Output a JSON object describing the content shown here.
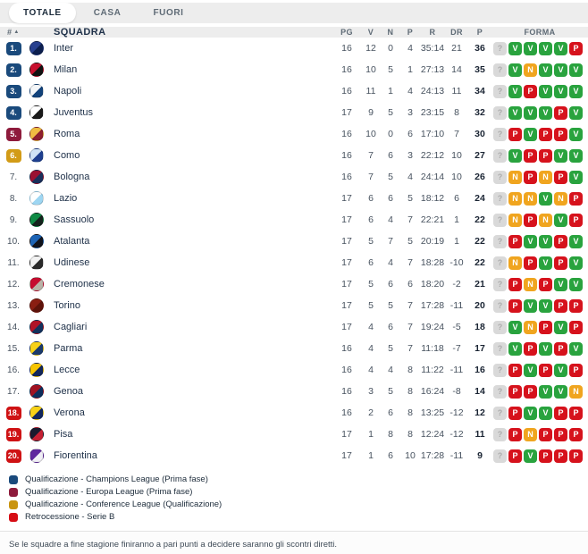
{
  "tabs": [
    {
      "label": "TOTALE",
      "active": true
    },
    {
      "label": "CASA",
      "active": false
    },
    {
      "label": "FUORI",
      "active": false
    }
  ],
  "table": {
    "headers": {
      "rank": "#",
      "sort_indicator": "▲",
      "squad": "SQUADRA",
      "pg": "PG",
      "v": "V",
      "n": "N",
      "p": "P",
      "r": "R",
      "dr": "DR",
      "pts": "P",
      "forma": "FORMA"
    },
    "rows": [
      {
        "rank": "1.",
        "badge": "cl",
        "name": "Inter",
        "logo_colors": [
          "#27408f",
          "#0c1f4e"
        ],
        "pg": 16,
        "v": 12,
        "n": 0,
        "p": 4,
        "r": "35:14",
        "dr": "21",
        "pts": 36,
        "forma": [
          "?",
          "V",
          "V",
          "V",
          "V",
          "P"
        ]
      },
      {
        "rank": "2.",
        "badge": "cl",
        "name": "Milan",
        "logo_colors": [
          "#c8102e",
          "#121212"
        ],
        "pg": 16,
        "v": 10,
        "n": 5,
        "p": 1,
        "r": "27:13",
        "dr": "14",
        "pts": 35,
        "forma": [
          "?",
          "V",
          "N",
          "V",
          "V",
          "V"
        ]
      },
      {
        "rank": "3.",
        "badge": "cl",
        "name": "Napoli",
        "logo_colors": [
          "#f4f6f8",
          "#12427a"
        ],
        "pg": 16,
        "v": 11,
        "n": 1,
        "p": 4,
        "r": "24:13",
        "dr": "11",
        "pts": 34,
        "forma": [
          "?",
          "V",
          "P",
          "V",
          "V",
          "V"
        ]
      },
      {
        "rank": "4.",
        "badge": "cl",
        "name": "Juventus",
        "logo_colors": [
          "#ffffff",
          "#1a1a1a"
        ],
        "pg": 17,
        "v": 9,
        "n": 5,
        "p": 3,
        "r": "23:15",
        "dr": "8",
        "pts": 32,
        "forma": [
          "?",
          "V",
          "V",
          "V",
          "P",
          "V"
        ]
      },
      {
        "rank": "5.",
        "badge": "el",
        "name": "Roma",
        "logo_colors": [
          "#f0bc42",
          "#8e1f2f"
        ],
        "pg": 16,
        "v": 10,
        "n": 0,
        "p": 6,
        "r": "17:10",
        "dr": "7",
        "pts": 30,
        "forma": [
          "?",
          "P",
          "V",
          "P",
          "P",
          "V"
        ]
      },
      {
        "rank": "6.",
        "badge": "conf",
        "name": "Como",
        "logo_colors": [
          "#cfe3f5",
          "#1e3f8f"
        ],
        "pg": 16,
        "v": 7,
        "n": 6,
        "p": 3,
        "r": "22:12",
        "dr": "10",
        "pts": 27,
        "forma": [
          "?",
          "V",
          "P",
          "P",
          "V",
          "V"
        ]
      },
      {
        "rank": "7.",
        "badge": "none",
        "name": "Bologna",
        "logo_colors": [
          "#9a1032",
          "#1a2f5a"
        ],
        "pg": 16,
        "v": 7,
        "n": 5,
        "p": 4,
        "r": "24:14",
        "dr": "10",
        "pts": 26,
        "forma": [
          "?",
          "N",
          "P",
          "N",
          "P",
          "V"
        ]
      },
      {
        "rank": "8.",
        "badge": "none",
        "name": "Lazio",
        "logo_colors": [
          "#ffffff",
          "#9ed6f2"
        ],
        "pg": 17,
        "v": 6,
        "n": 6,
        "p": 5,
        "r": "18:12",
        "dr": "6",
        "pts": 24,
        "forma": [
          "?",
          "N",
          "N",
          "V",
          "N",
          "P"
        ]
      },
      {
        "rank": "9.",
        "badge": "none",
        "name": "Sassuolo",
        "logo_colors": [
          "#0e8a44",
          "#14221c"
        ],
        "pg": 17,
        "v": 6,
        "n": 4,
        "p": 7,
        "r": "22:21",
        "dr": "1",
        "pts": 22,
        "forma": [
          "?",
          "N",
          "P",
          "N",
          "V",
          "P"
        ]
      },
      {
        "rank": "10.",
        "badge": "none",
        "name": "Atalanta",
        "logo_colors": [
          "#1d64b5",
          "#10131c"
        ],
        "pg": 17,
        "v": 5,
        "n": 7,
        "p": 5,
        "r": "20:19",
        "dr": "1",
        "pts": 22,
        "forma": [
          "?",
          "P",
          "V",
          "V",
          "P",
          "V"
        ]
      },
      {
        "rank": "11.",
        "badge": "none",
        "name": "Udinese",
        "logo_colors": [
          "#f2f2f2",
          "#2a2a2a"
        ],
        "pg": 17,
        "v": 6,
        "n": 4,
        "p": 7,
        "r": "18:28",
        "dr": "-10",
        "pts": 22,
        "forma": [
          "?",
          "N",
          "P",
          "V",
          "P",
          "V"
        ]
      },
      {
        "rank": "12.",
        "badge": "none",
        "name": "Cremonese",
        "logo_colors": [
          "#c60c30",
          "#b9b3a8"
        ],
        "pg": 17,
        "v": 5,
        "n": 6,
        "p": 6,
        "r": "18:20",
        "dr": "-2",
        "pts": 21,
        "forma": [
          "?",
          "P",
          "N",
          "P",
          "V",
          "V"
        ]
      },
      {
        "rank": "13.",
        "badge": "none",
        "name": "Torino",
        "logo_colors": [
          "#8a1e12",
          "#5e130a"
        ],
        "pg": 17,
        "v": 5,
        "n": 5,
        "p": 7,
        "r": "17:28",
        "dr": "-11",
        "pts": 20,
        "forma": [
          "?",
          "P",
          "V",
          "V",
          "P",
          "P"
        ]
      },
      {
        "rank": "14.",
        "badge": "none",
        "name": "Cagliari",
        "logo_colors": [
          "#b01227",
          "#13315c"
        ],
        "pg": 17,
        "v": 4,
        "n": 6,
        "p": 7,
        "r": "19:24",
        "dr": "-5",
        "pts": 18,
        "forma": [
          "?",
          "V",
          "N",
          "P",
          "V",
          "P"
        ]
      },
      {
        "rank": "15.",
        "badge": "none",
        "name": "Parma",
        "logo_colors": [
          "#f7d117",
          "#1b3a6b"
        ],
        "pg": 16,
        "v": 4,
        "n": 5,
        "p": 7,
        "r": "11:18",
        "dr": "-7",
        "pts": 17,
        "forma": [
          "?",
          "V",
          "P",
          "V",
          "P",
          "V"
        ]
      },
      {
        "rank": "16.",
        "badge": "none",
        "name": "Lecce",
        "logo_colors": [
          "#f7c500",
          "#13275a"
        ],
        "pg": 16,
        "v": 4,
        "n": 4,
        "p": 8,
        "r": "11:22",
        "dr": "-11",
        "pts": 16,
        "forma": [
          "?",
          "P",
          "V",
          "P",
          "V",
          "P"
        ]
      },
      {
        "rank": "17.",
        "badge": "none",
        "name": "Genoa",
        "logo_colors": [
          "#a11222",
          "#0d2e5c"
        ],
        "pg": 16,
        "v": 3,
        "n": 5,
        "p": 8,
        "r": "16:24",
        "dr": "-8",
        "pts": 14,
        "forma": [
          "?",
          "P",
          "P",
          "V",
          "V",
          "N"
        ]
      },
      {
        "rank": "18.",
        "badge": "rel",
        "name": "Verona",
        "logo_colors": [
          "#f7d117",
          "#12275e"
        ],
        "pg": 16,
        "v": 2,
        "n": 6,
        "p": 8,
        "r": "13:25",
        "dr": "-12",
        "pts": 12,
        "forma": [
          "?",
          "P",
          "V",
          "V",
          "P",
          "P"
        ]
      },
      {
        "rank": "19.",
        "badge": "rel",
        "name": "Pisa",
        "logo_colors": [
          "#1a1a2e",
          "#c52033"
        ],
        "pg": 17,
        "v": 1,
        "n": 8,
        "p": 8,
        "r": "12:24",
        "dr": "-12",
        "pts": 11,
        "forma": [
          "?",
          "P",
          "N",
          "P",
          "P",
          "P"
        ]
      },
      {
        "rank": "20.",
        "badge": "rel",
        "name": "Fiorentina",
        "logo_colors": [
          "#5f259f",
          "#f0eef5"
        ],
        "pg": 17,
        "v": 1,
        "n": 6,
        "p": 10,
        "r": "17:28",
        "dr": "-11",
        "pts": 9,
        "forma": [
          "?",
          "P",
          "V",
          "P",
          "P",
          "P"
        ]
      }
    ]
  },
  "legend": [
    {
      "color": "#1a4a7c",
      "label": "Qualificazione - Champions League (Prima fase)"
    },
    {
      "color": "#8e1b3c",
      "label": "Qualificazione - Europa League (Prima fase)"
    },
    {
      "color": "#c9940f",
      "label": "Qualificazione - Conference League (Qualificazione)"
    },
    {
      "color": "#d60d15",
      "label": "Retrocessione - Serie B"
    }
  ],
  "footer_note": "Se le squadre a fine stagione finiranno a pari punti a decidere saranno gli scontri diretti.",
  "colors": {
    "badge_champions": "#1a4a7c",
    "badge_europa": "#8e1b3c",
    "badge_conference": "#d29b17",
    "badge_relegation": "#cf1214",
    "forma_win": "#29a33e",
    "forma_draw": "#f0a51f",
    "forma_loss": "#d6121c",
    "forma_unknown": "#d9d9d9"
  }
}
